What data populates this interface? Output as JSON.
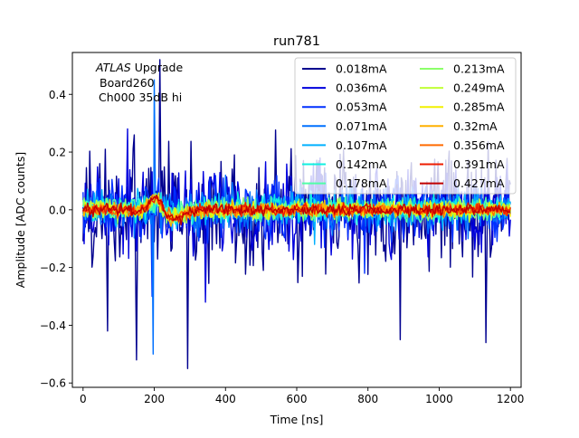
{
  "chart_data": {
    "type": "line",
    "title": "run781",
    "xlabel": "Time [ns]",
    "ylabel": "Amplitude [ADC counts]",
    "xlim": [
      -30,
      1230
    ],
    "ylim": [
      -0.615,
      0.545
    ],
    "x_ticks": [
      0,
      200,
      400,
      600,
      800,
      1000,
      1200
    ],
    "y_ticks": [
      -0.6,
      -0.4,
      -0.2,
      0.0,
      0.2,
      0.4
    ],
    "x_tick_labels": [
      "0",
      "200",
      "400",
      "600",
      "800",
      "1000",
      "1200"
    ],
    "y_tick_labels": [
      "−0.6",
      "−0.4",
      "−0.2",
      "0.0",
      "0.2",
      "0.4"
    ],
    "grid": false,
    "legend_position": "top-right",
    "legend_columns": 2,
    "sample_step_ns": 3.125,
    "x_range_ns": [
      0,
      1200
    ],
    "annotation": {
      "line1_italic": "ATLAS",
      "line1_rest": " Upgrade",
      "line2": "Board260",
      "line3": "Ch000 35dB hi"
    },
    "series": [
      {
        "name": "0.018mA",
        "color": "#00008f",
        "noise_amplitude": 0.2,
        "outliers": [
          [
            215,
            0.52
          ],
          [
            295,
            -0.55
          ],
          [
            150,
            -0.52
          ],
          [
            70,
            -0.42
          ],
          [
            1130,
            -0.46
          ],
          [
            890,
            -0.45
          ]
        ],
        "pulse_amplitude": 0.0
      },
      {
        "name": "0.036mA",
        "color": "#0000dd",
        "noise_amplitude": 0.13,
        "outliers": [
          [
            345,
            -0.32
          ],
          [
            125,
            0.28
          ]
        ],
        "pulse_amplitude": 0.0
      },
      {
        "name": "0.053mA",
        "color": "#0030ff",
        "noise_amplitude": 0.09,
        "outliers": [
          [
            195,
            -0.3
          ],
          [
            790,
            -0.22
          ]
        ],
        "pulse_amplitude": 0.0
      },
      {
        "name": "0.071mA",
        "color": "#0070ff",
        "noise_amplitude": 0.065,
        "outliers": [
          [
            198,
            -0.5
          ],
          [
            200,
            0.45
          ],
          [
            400,
            0.12
          ]
        ],
        "pulse_amplitude": 0.02
      },
      {
        "name": "0.107mA",
        "color": "#00b0ff",
        "noise_amplitude": 0.05,
        "outliers": [
          [
            650,
            -0.12
          ]
        ],
        "pulse_amplitude": 0.02
      },
      {
        "name": "0.142mA",
        "color": "#10f0e0",
        "noise_amplitude": 0.042,
        "outliers": [],
        "pulse_amplitude": 0.03
      },
      {
        "name": "0.178mA",
        "color": "#50ffa8",
        "noise_amplitude": 0.036,
        "outliers": [],
        "pulse_amplitude": 0.03
      },
      {
        "name": "0.213mA",
        "color": "#8cff6a",
        "noise_amplitude": 0.032,
        "outliers": [],
        "pulse_amplitude": 0.035
      },
      {
        "name": "0.249mA",
        "color": "#c0ff36",
        "noise_amplitude": 0.028,
        "outliers": [],
        "pulse_amplitude": 0.04
      },
      {
        "name": "0.285mA",
        "color": "#f2f000",
        "noise_amplitude": 0.025,
        "outliers": [],
        "pulse_amplitude": 0.045
      },
      {
        "name": "0.32mA",
        "color": "#ffb000",
        "noise_amplitude": 0.022,
        "outliers": [],
        "pulse_amplitude": 0.05
      },
      {
        "name": "0.356mA",
        "color": "#ff6a00",
        "noise_amplitude": 0.02,
        "outliers": [],
        "pulse_amplitude": 0.05
      },
      {
        "name": "0.391mA",
        "color": "#ee1c00",
        "noise_amplitude": 0.018,
        "outliers": [],
        "pulse_amplitude": 0.055
      },
      {
        "name": "0.427mA",
        "color": "#c00000",
        "noise_amplitude": 0.017,
        "outliers": [],
        "pulse_amplitude": 0.06
      }
    ]
  }
}
